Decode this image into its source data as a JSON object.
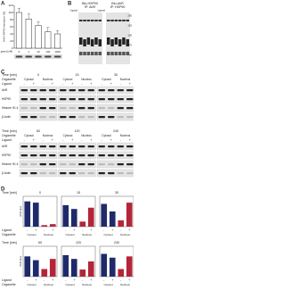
{
  "panel_a": {
    "label": "A",
    "y_label": "AhR-HSP90 interaction [%]",
    "ligand_label": "Ligand [nM]",
    "categories": [
      "0",
      "1",
      "10",
      "100",
      "1000"
    ],
    "values": [
      100,
      82,
      64,
      46,
      40
    ],
    "errors": [
      12,
      14,
      10,
      12,
      9
    ],
    "ylim": [
      0,
      120
    ],
    "yticks": [
      0,
      20,
      40,
      60,
      80,
      100,
      120
    ]
  },
  "panel_b": {
    "label": "B",
    "groups": [
      {
        "title": "Bio-HSP90",
        "ip": "IP: AhR"
      },
      {
        "title": "Bio-AhR",
        "ip": "IP: HSP90"
      }
    ],
    "ligand_label": "Ligand",
    "markers": [
      "250",
      "150",
      "100",
      "75",
      "50"
    ]
  },
  "panel_c": {
    "label": "C",
    "time_label": "Time [min]",
    "organelle_label": "Organelle",
    "ligand_label": "Ligand",
    "times": [
      "0",
      "15",
      "30",
      "60",
      "120",
      "240"
    ],
    "organelles": [
      "Cytosol",
      "Nucleus"
    ],
    "proteins": [
      "AhR",
      "HSP90",
      "Histone H1.4",
      "β-Actin"
    ],
    "signs": [
      "-",
      "+"
    ]
  },
  "panel_d": {
    "label": "D",
    "time_label": "Time [min]",
    "ligand_label": "Ligand",
    "organelle_label": "Organelle",
    "y_label": "AhR [au]",
    "colors": [
      "#1f2a6b",
      "#b3263a"
    ],
    "ylim": [
      0,
      120
    ],
    "charts": [
      {
        "values": [
          100,
          95,
          6,
          10
        ]
      },
      {
        "values": [
          85,
          70,
          20,
          75
        ]
      },
      {
        "values": [
          90,
          60,
          25,
          95
        ]
      },
      {
        "values": [
          80,
          65,
          30,
          70
        ]
      },
      {
        "values": [
          85,
          70,
          28,
          60
        ]
      },
      {
        "values": [
          90,
          75,
          30,
          80
        ]
      }
    ]
  }
}
